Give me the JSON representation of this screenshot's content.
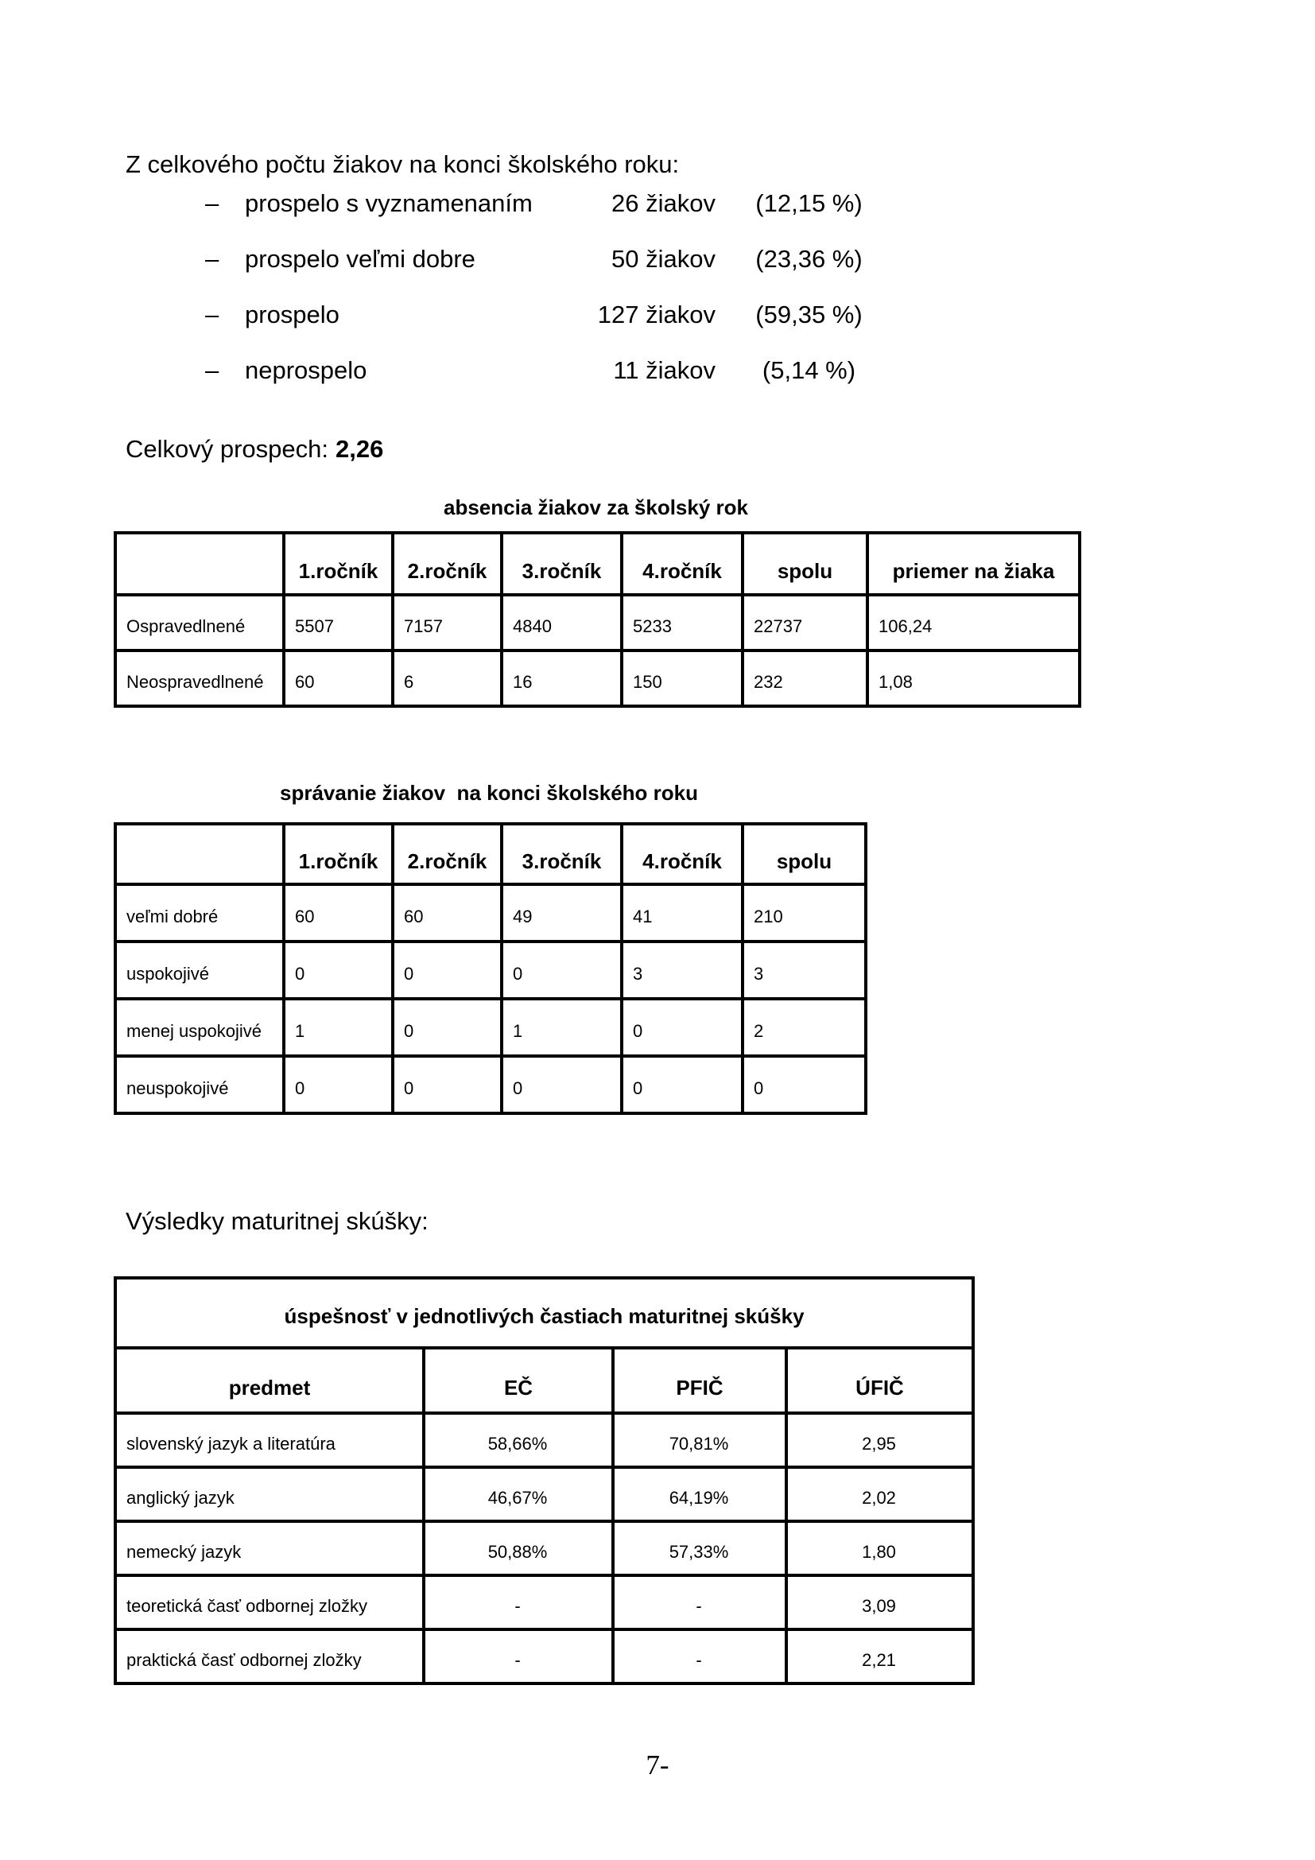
{
  "intro": {
    "heading": "Z celkového počtu žiakov na konci školského roku:",
    "items": [
      {
        "dash": "–",
        "label": "prospelo s vyznamenaním",
        "count": "26 žiakov",
        "percent": "(12,15 %)"
      },
      {
        "dash": "–",
        "label": "prospelo veľmi dobre",
        "count": "50 žiakov",
        "percent": "(23,36 %)"
      },
      {
        "dash": "–",
        "label": "prospelo",
        "count": "127 žiakov",
        "percent": "(59,35 %)"
      },
      {
        "dash": "–",
        "label": "neprospelo",
        "count": "11 žiakov",
        "percent": "(5,14 %)"
      }
    ]
  },
  "summary": {
    "label": "Celkový prospech:",
    "value": "2,26"
  },
  "absence_table": {
    "title": "absencia žiakov za školský rok",
    "columns": [
      "",
      "1.ročník",
      "2.ročník",
      "3.ročník",
      "4.ročník",
      "spolu",
      "priemer na žiaka"
    ],
    "rows": [
      {
        "label": "Ospravedlnené",
        "values": [
          "5507",
          "7157",
          "4840",
          "5233",
          "22737",
          "106,24"
        ]
      },
      {
        "label": "Neospravedlnené",
        "values": [
          "60",
          "6",
          "16",
          "150",
          "232",
          "1,08"
        ]
      }
    ]
  },
  "behavior_table": {
    "title": "správanie žiakov  na konci školského roku",
    "columns": [
      "",
      "1.ročník",
      "2.ročník",
      "3.ročník",
      "4.ročník",
      "spolu"
    ],
    "rows": [
      {
        "label": "veľmi dobré",
        "values": [
          "60",
          "60",
          "49",
          "41",
          "210"
        ]
      },
      {
        "label": "uspokojivé",
        "values": [
          "0",
          "0",
          "0",
          "3",
          "3"
        ]
      },
      {
        "label": "menej uspokojivé",
        "values": [
          "1",
          "0",
          "1",
          "0",
          "2"
        ]
      },
      {
        "label": "neuspokojivé",
        "values": [
          "0",
          "0",
          "0",
          "0",
          "0"
        ]
      }
    ]
  },
  "matura": {
    "heading": "Výsledky maturitnej skúšky:"
  },
  "matura_table": {
    "banner": "úspešnosť v jednotlivých častiach maturitnej skúšky",
    "columns": [
      "predmet",
      "EČ",
      "PFIČ",
      "ÚFIČ"
    ],
    "rows": [
      {
        "label": "slovenský jazyk a literatúra",
        "values": [
          "58,66%",
          "70,81%",
          "2,95"
        ]
      },
      {
        "label": "anglický jazyk",
        "values": [
          "46,67%",
          "64,19%",
          "2,02"
        ]
      },
      {
        "label": "nemecký jazyk",
        "values": [
          "50,88%",
          "57,33%",
          "1,80"
        ]
      },
      {
        "label": "teoretická časť odbornej zložky",
        "values": [
          "-",
          "-",
          "3,09"
        ]
      },
      {
        "label": "praktická časť odbornej zložky",
        "values": [
          "-",
          "-",
          "2,21"
        ]
      }
    ]
  },
  "footer": {
    "page_number": "7-"
  }
}
